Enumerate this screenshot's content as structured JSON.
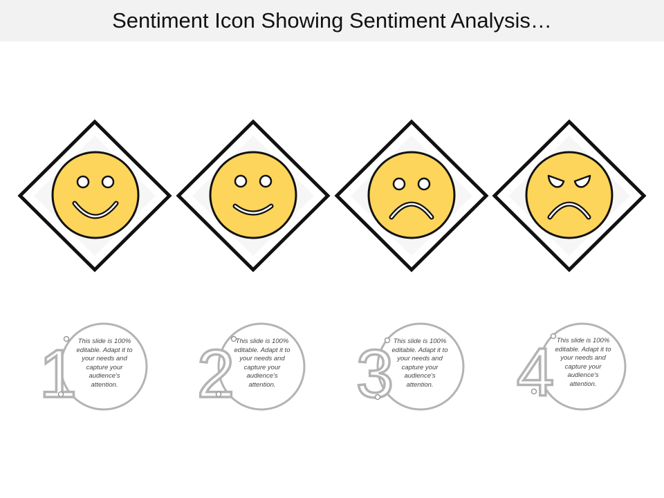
{
  "title": "Sentiment Icon Showing Sentiment Analysis…",
  "colors": {
    "face_fill": "#fcd55a",
    "outline": "#111111",
    "diamond_inner": "#f6f6f6",
    "number_stroke": "#b3b3b3"
  },
  "sentiments": [
    {
      "icon": "big-smile-face-icon"
    },
    {
      "icon": "smile-face-icon"
    },
    {
      "icon": "sad-face-icon"
    },
    {
      "icon": "angry-face-icon"
    }
  ],
  "steps": [
    {
      "number": "1",
      "text": "This slide is 100% editable. Adapt it to your needs and capture your audience's attention."
    },
    {
      "number": "2",
      "text": "This slide is 100% editable. Adapt it to your needs and capture your audience's attention."
    },
    {
      "number": "3",
      "text": "This slide is 100% editable. Adapt it to your needs and capture your audience's attention."
    },
    {
      "number": "4",
      "text": "This slide is 100% editable. Adapt it to your needs and capture your audience's attention."
    }
  ]
}
